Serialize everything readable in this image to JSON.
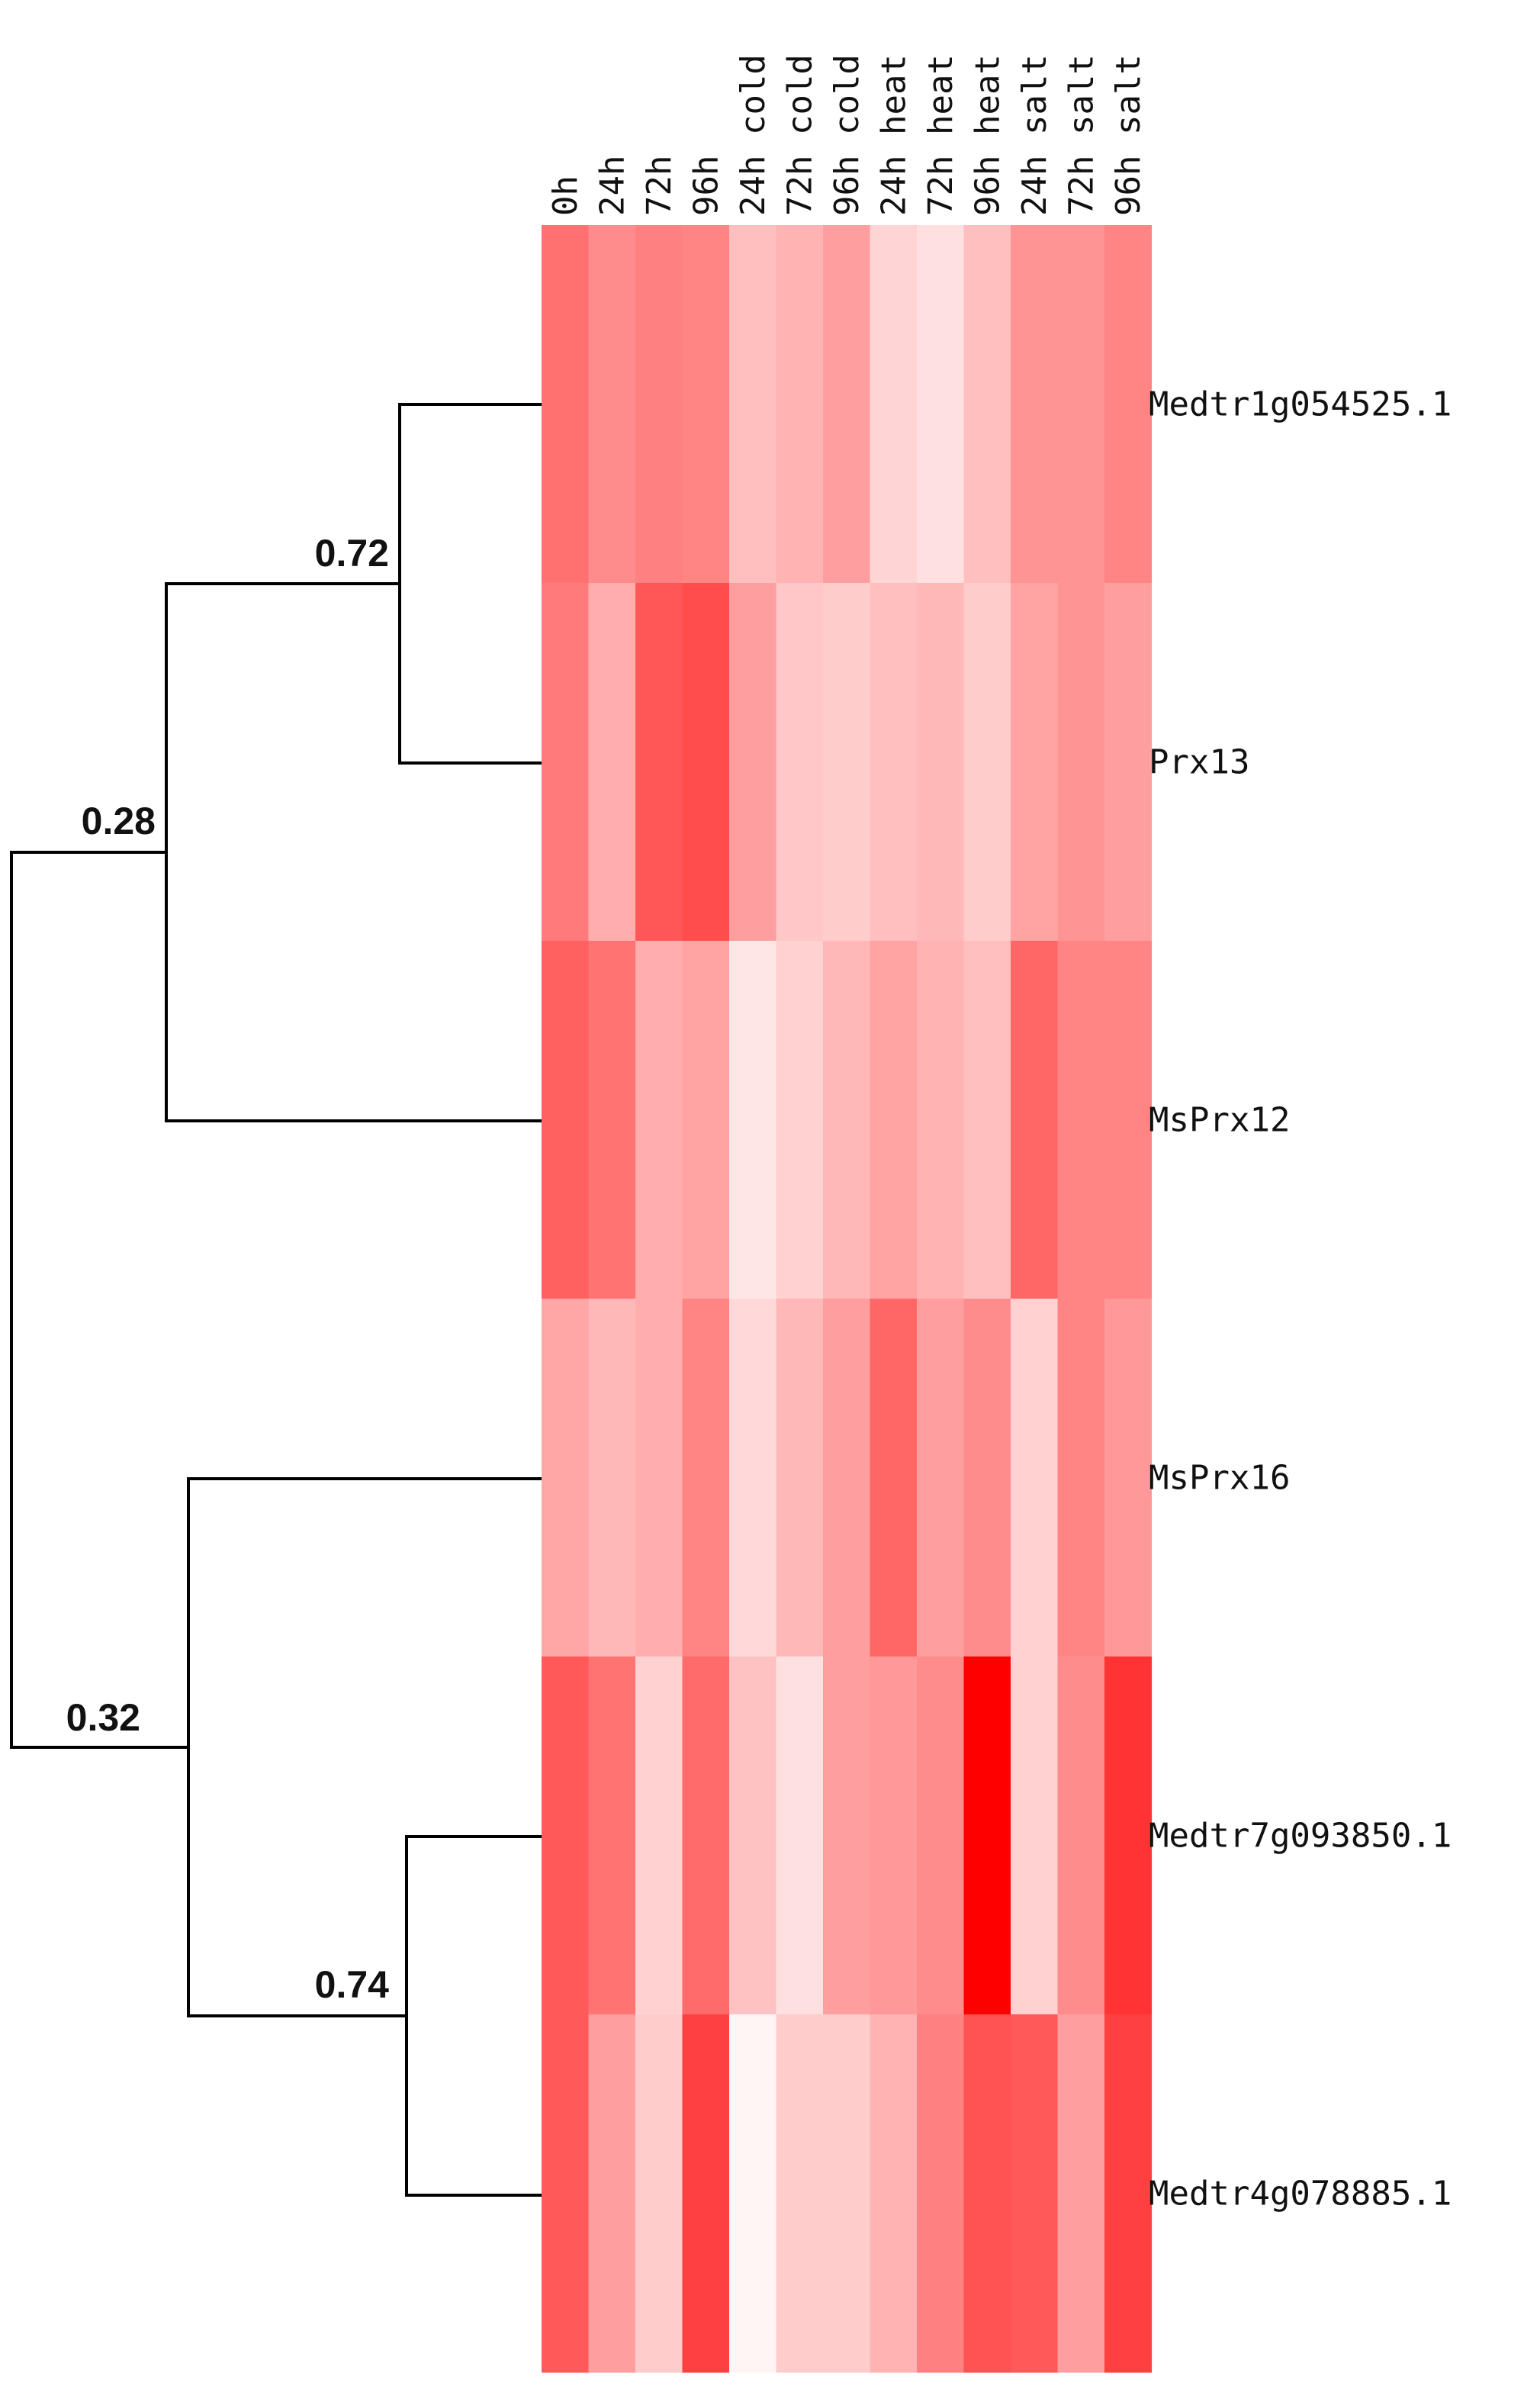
{
  "chart_data": {
    "type": "heatmap",
    "colors": {
      "low": "#ffffff",
      "high": "#ff0000"
    },
    "columns": [
      "0h",
      "24h",
      "72h",
      "96h",
      "24h cold",
      "72h cold",
      "96h cold",
      "24h heat",
      "72h heat",
      "96h heat",
      "24h salt",
      "72h salt",
      "96h salt"
    ],
    "rows": [
      "Medtr1g054525.1",
      "Prx13",
      "MsPrx12",
      "MsPrx16",
      "Medtr7g093850.1",
      "Medtr4g078885.1"
    ],
    "values": [
      [
        0.56,
        0.45,
        0.5,
        0.48,
        0.25,
        0.3,
        0.38,
        0.17,
        0.12,
        0.25,
        0.42,
        0.42,
        0.48
      ],
      [
        0.52,
        0.32,
        0.66,
        0.7,
        0.38,
        0.22,
        0.2,
        0.25,
        0.28,
        0.2,
        0.36,
        0.42,
        0.38
      ],
      [
        0.62,
        0.55,
        0.32,
        0.36,
        0.1,
        0.18,
        0.28,
        0.36,
        0.3,
        0.25,
        0.6,
        0.48,
        0.48
      ],
      [
        0.35,
        0.28,
        0.32,
        0.48,
        0.15,
        0.28,
        0.38,
        0.6,
        0.38,
        0.45,
        0.18,
        0.48,
        0.4
      ],
      [
        0.65,
        0.55,
        0.18,
        0.58,
        0.24,
        0.12,
        0.38,
        0.4,
        0.45,
        1.0,
        0.18,
        0.45,
        0.8
      ],
      [
        0.65,
        0.38,
        0.2,
        0.75,
        0.04,
        0.2,
        0.2,
        0.3,
        0.5,
        0.68,
        0.65,
        0.38,
        0.75
      ]
    ],
    "dendrogram_nodes": [
      {
        "label": "0.72",
        "members": [
          "Medtr1g054525.1",
          "Prx13"
        ]
      },
      {
        "label": "0.28",
        "members": [
          "Medtr1g054525.1",
          "Prx13",
          "MsPrx12"
        ]
      },
      {
        "label": "0.74",
        "members": [
          "Medtr7g093850.1",
          "Medtr4g078885.1"
        ]
      },
      {
        "label": "0.32",
        "members": [
          "MsPrx16",
          "Medtr7g093850.1",
          "Medtr4g078885.1"
        ]
      }
    ]
  }
}
